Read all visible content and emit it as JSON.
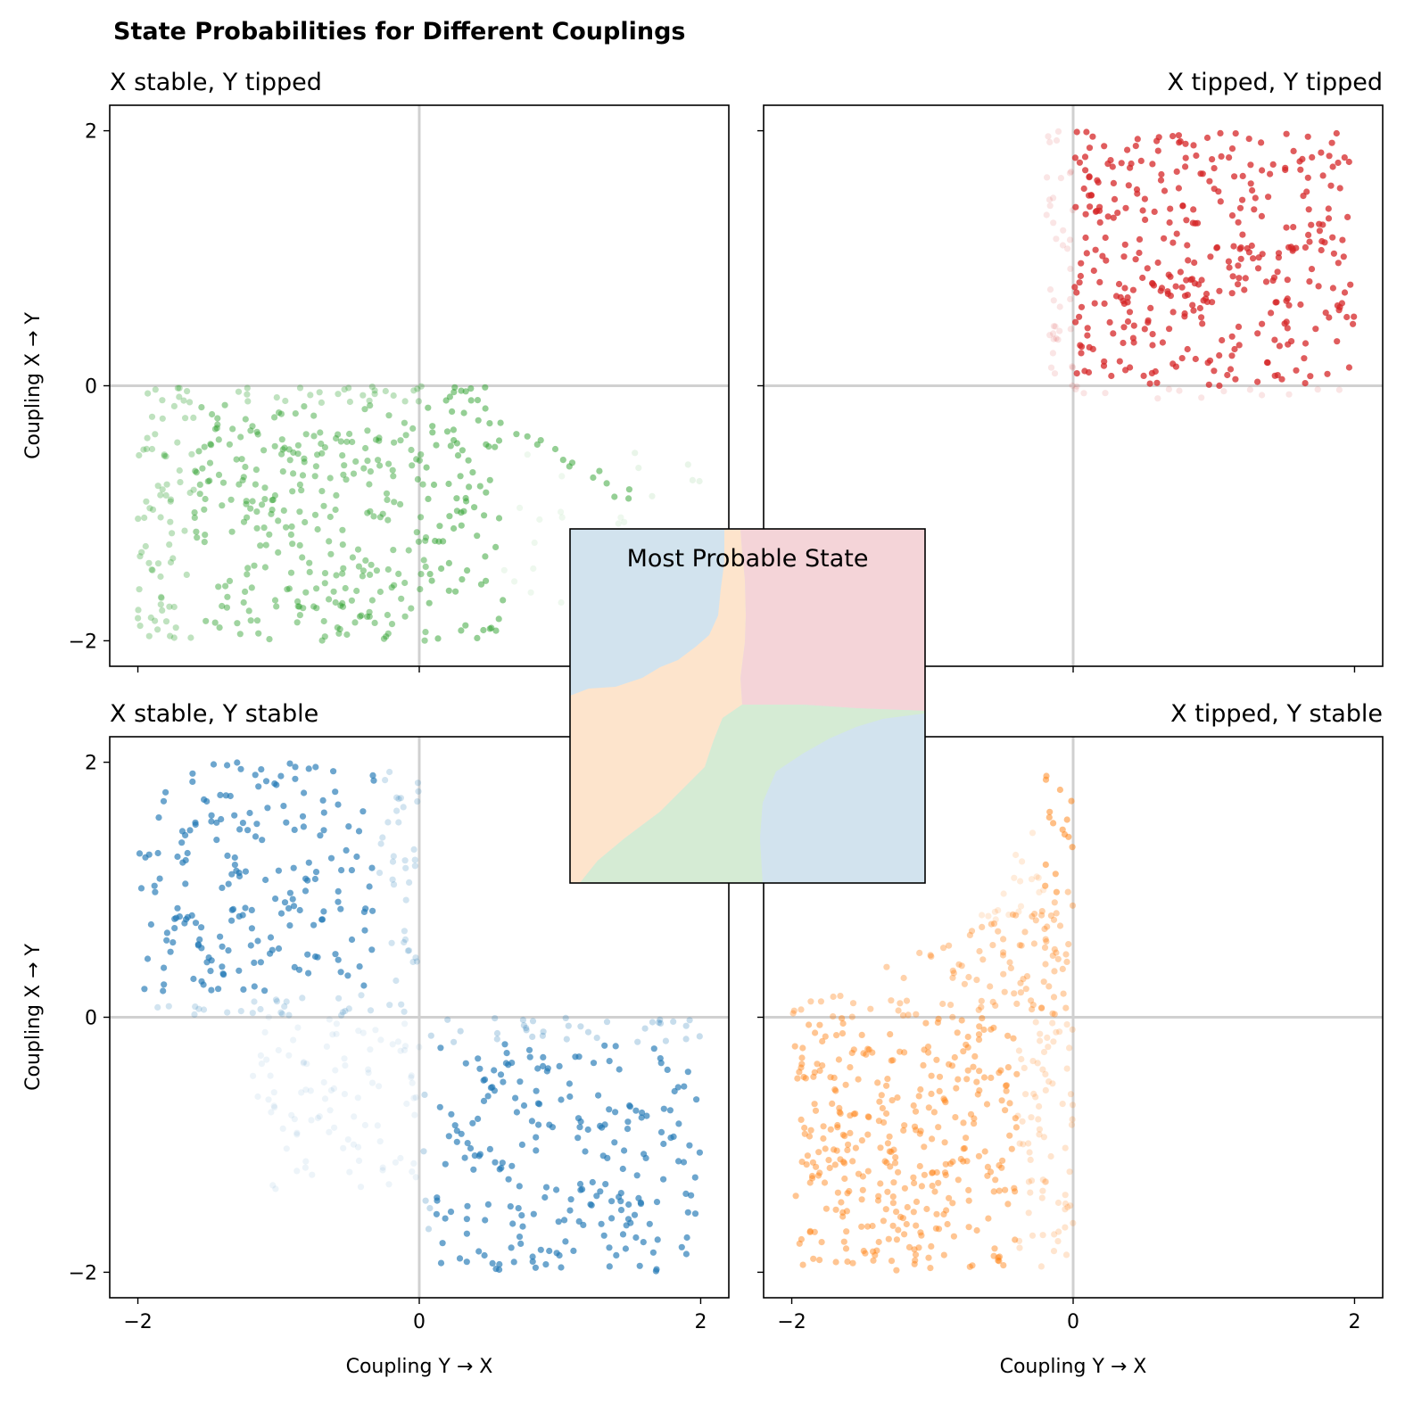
{
  "figure_title": "State Probabilities for Different Couplings",
  "chart_data": [
    {
      "type": "scatter",
      "panel": "top-left",
      "title": "X stable, Y tipped",
      "title_align": "left",
      "ylabel": "Coupling X → Y",
      "xlabel": "",
      "xlim": [
        -2.2,
        2.2
      ],
      "ylim": [
        -2.2,
        2.2
      ],
      "xticks": [
        "−2",
        "0",
        "2"
      ],
      "yticks": [
        "−2",
        "0",
        "2"
      ],
      "color": "#2ca02c",
      "points_generator": "X stable, Y tipped region: upper boundary near y=0, fading toward x>0",
      "point_count": 520
    },
    {
      "type": "scatter",
      "panel": "top-right",
      "title": "X tipped, Y tipped",
      "title_align": "right",
      "ylabel": "",
      "xlabel": "",
      "xlim": [
        -2.2,
        2.2
      ],
      "ylim": [
        -2.2,
        2.2
      ],
      "xticks": [
        "−2",
        "0",
        "2"
      ],
      "yticks": [
        "−2",
        "0",
        "2"
      ],
      "color": "#d62728",
      "point_count": 420
    },
    {
      "type": "scatter",
      "panel": "bottom-left",
      "title": "X stable, Y stable",
      "title_align": "left",
      "ylabel": "Coupling X → Y",
      "xlabel": "Coupling Y → X",
      "xlim": [
        -2.2,
        2.2
      ],
      "ylim": [
        -2.2,
        2.2
      ],
      "xticks": [
        "−2",
        "0",
        "2"
      ],
      "yticks": [
        "−2",
        "0",
        "2"
      ],
      "color": "#1f77b4",
      "point_count": 620
    },
    {
      "type": "scatter",
      "panel": "bottom-right",
      "title": "X tipped, Y stable",
      "title_align": "right",
      "ylabel": "",
      "xlabel": "Coupling Y → X",
      "xlim": [
        -2.2,
        2.2
      ],
      "ylim": [
        -2.2,
        2.2
      ],
      "xticks": [
        "−2",
        "0",
        "2"
      ],
      "yticks": [
        "−2",
        "0",
        "2"
      ],
      "color": "#ff7f0e",
      "point_count": 560
    },
    {
      "type": "heatmap",
      "panel": "inset",
      "title": "Most Probable State",
      "region_colors": {
        "X stable, Y tipped": "#d2e3ee",
        "X tipped, Y tipped": "#f4d4d8",
        "X tipped, Y stable": "#fde4cc",
        "X stable, Y stable": "#d5ebd4"
      }
    }
  ]
}
